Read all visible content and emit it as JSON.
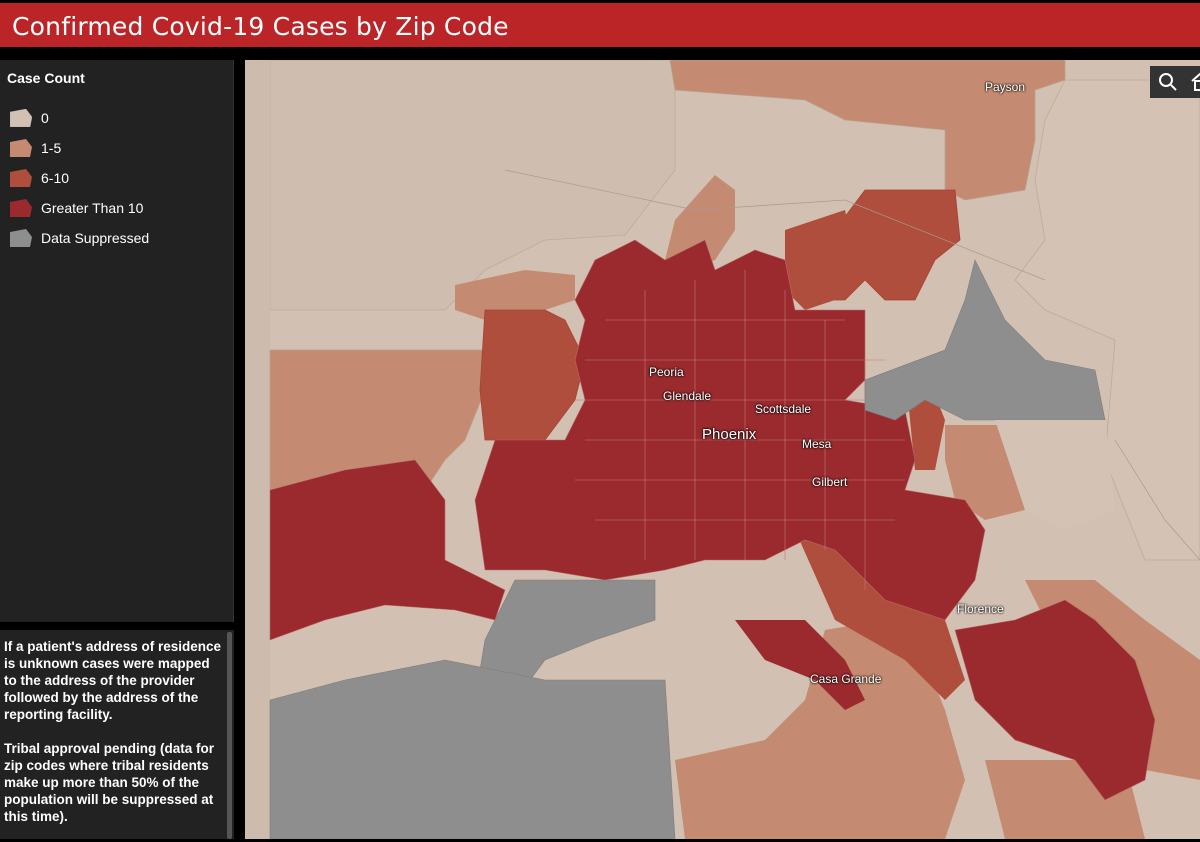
{
  "header": {
    "title": "Confirmed Covid-19 Cases by Zip Code"
  },
  "legend": {
    "title": "Case Count",
    "items": [
      {
        "label": "0",
        "color": "#d2c1b2"
      },
      {
        "label": "1-5",
        "color": "#c48b72"
      },
      {
        "label": "6-10",
        "color": "#b04e3e"
      },
      {
        "label": "Greater Than 10",
        "color": "#9a2a2e"
      },
      {
        "label": "Data Suppressed",
        "color": "#8e8e8e"
      }
    ]
  },
  "notes": {
    "p1": "If a patient's address of residence is unknown cases were mapped to the address of the provider followed by the address of the reporting facility.",
    "p2": "Tribal approval pending (data for zip codes where tribal residents make up more than 50% of the population will be suppressed at this time)."
  },
  "map": {
    "labels": {
      "payson": "Payson",
      "peoria": "Peoria",
      "glendale": "Glendale",
      "scottsdale": "Scottsdale",
      "phoenix": "Phoenix",
      "mesa": "Mesa",
      "gilbert": "Gilbert",
      "florence": "Florence",
      "casa_grande": "Casa Grande"
    },
    "tools": {
      "search": "search-icon",
      "home": "home-icon"
    }
  }
}
